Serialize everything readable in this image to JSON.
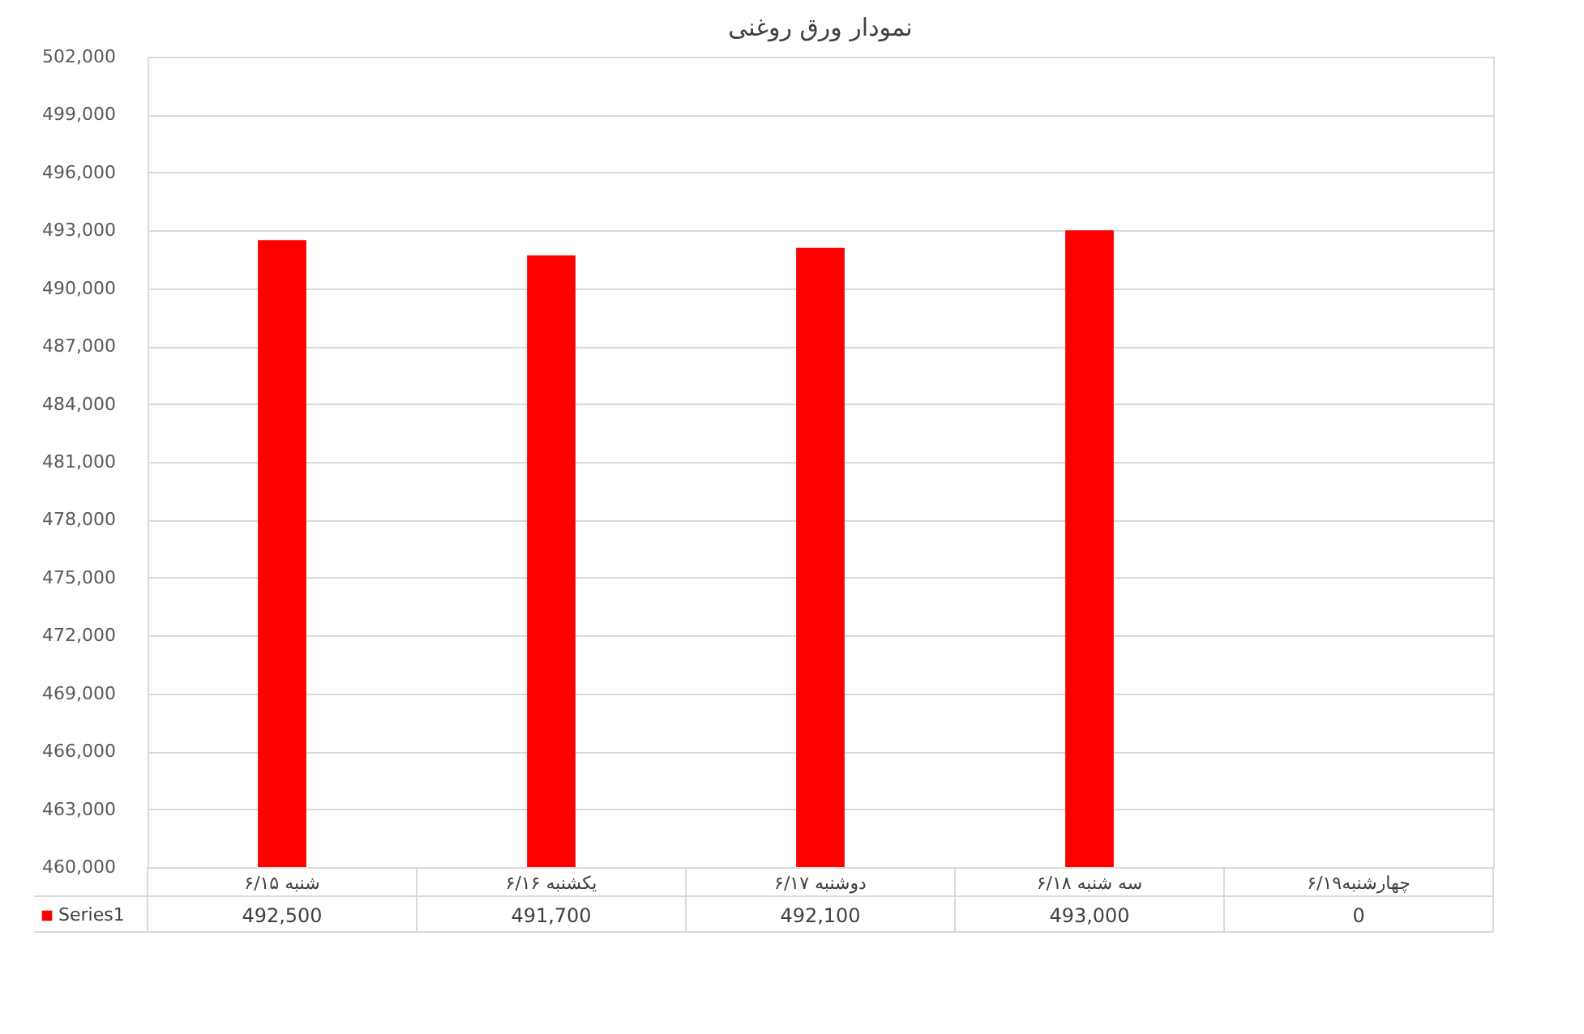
{
  "chart_data": {
    "type": "bar",
    "title": "نمودار ورق روغنی",
    "categories": [
      "شنبه ۶/۱۵",
      "یکشنبه ۶/۱۶",
      "دوشنبه ۶/۱۷",
      "سه شنبه ۶/۱۸",
      "چهارشنبه۶/۱۹"
    ],
    "series": [
      {
        "name": "Series1",
        "color": "#ff0000",
        "values": [
          492500,
          491700,
          492100,
          493000,
          null
        ],
        "value_labels": [
          "492,500",
          "491,700",
          "492,100",
          "493,000",
          "0"
        ]
      }
    ],
    "ylim": [
      460000,
      502000
    ],
    "yticks": [
      {
        "value": 460000,
        "label": "460,000"
      },
      {
        "value": 463000,
        "label": "463,000"
      },
      {
        "value": 466000,
        "label": "466,000"
      },
      {
        "value": 469000,
        "label": "469,000"
      },
      {
        "value": 472000,
        "label": "472,000"
      },
      {
        "value": 475000,
        "label": "475,000"
      },
      {
        "value": 478000,
        "label": "478,000"
      },
      {
        "value": 481000,
        "label": "481,000"
      },
      {
        "value": 484000,
        "label": "484,000"
      },
      {
        "value": 487000,
        "label": "487,000"
      },
      {
        "value": 490000,
        "label": "490,000"
      },
      {
        "value": 493000,
        "label": "493,000"
      },
      {
        "value": 496000,
        "label": "496,000"
      },
      {
        "value": 499000,
        "label": "499,000"
      },
      {
        "value": 502000,
        "label": "502,000"
      }
    ],
    "grid": "y",
    "legend": "bottom"
  }
}
